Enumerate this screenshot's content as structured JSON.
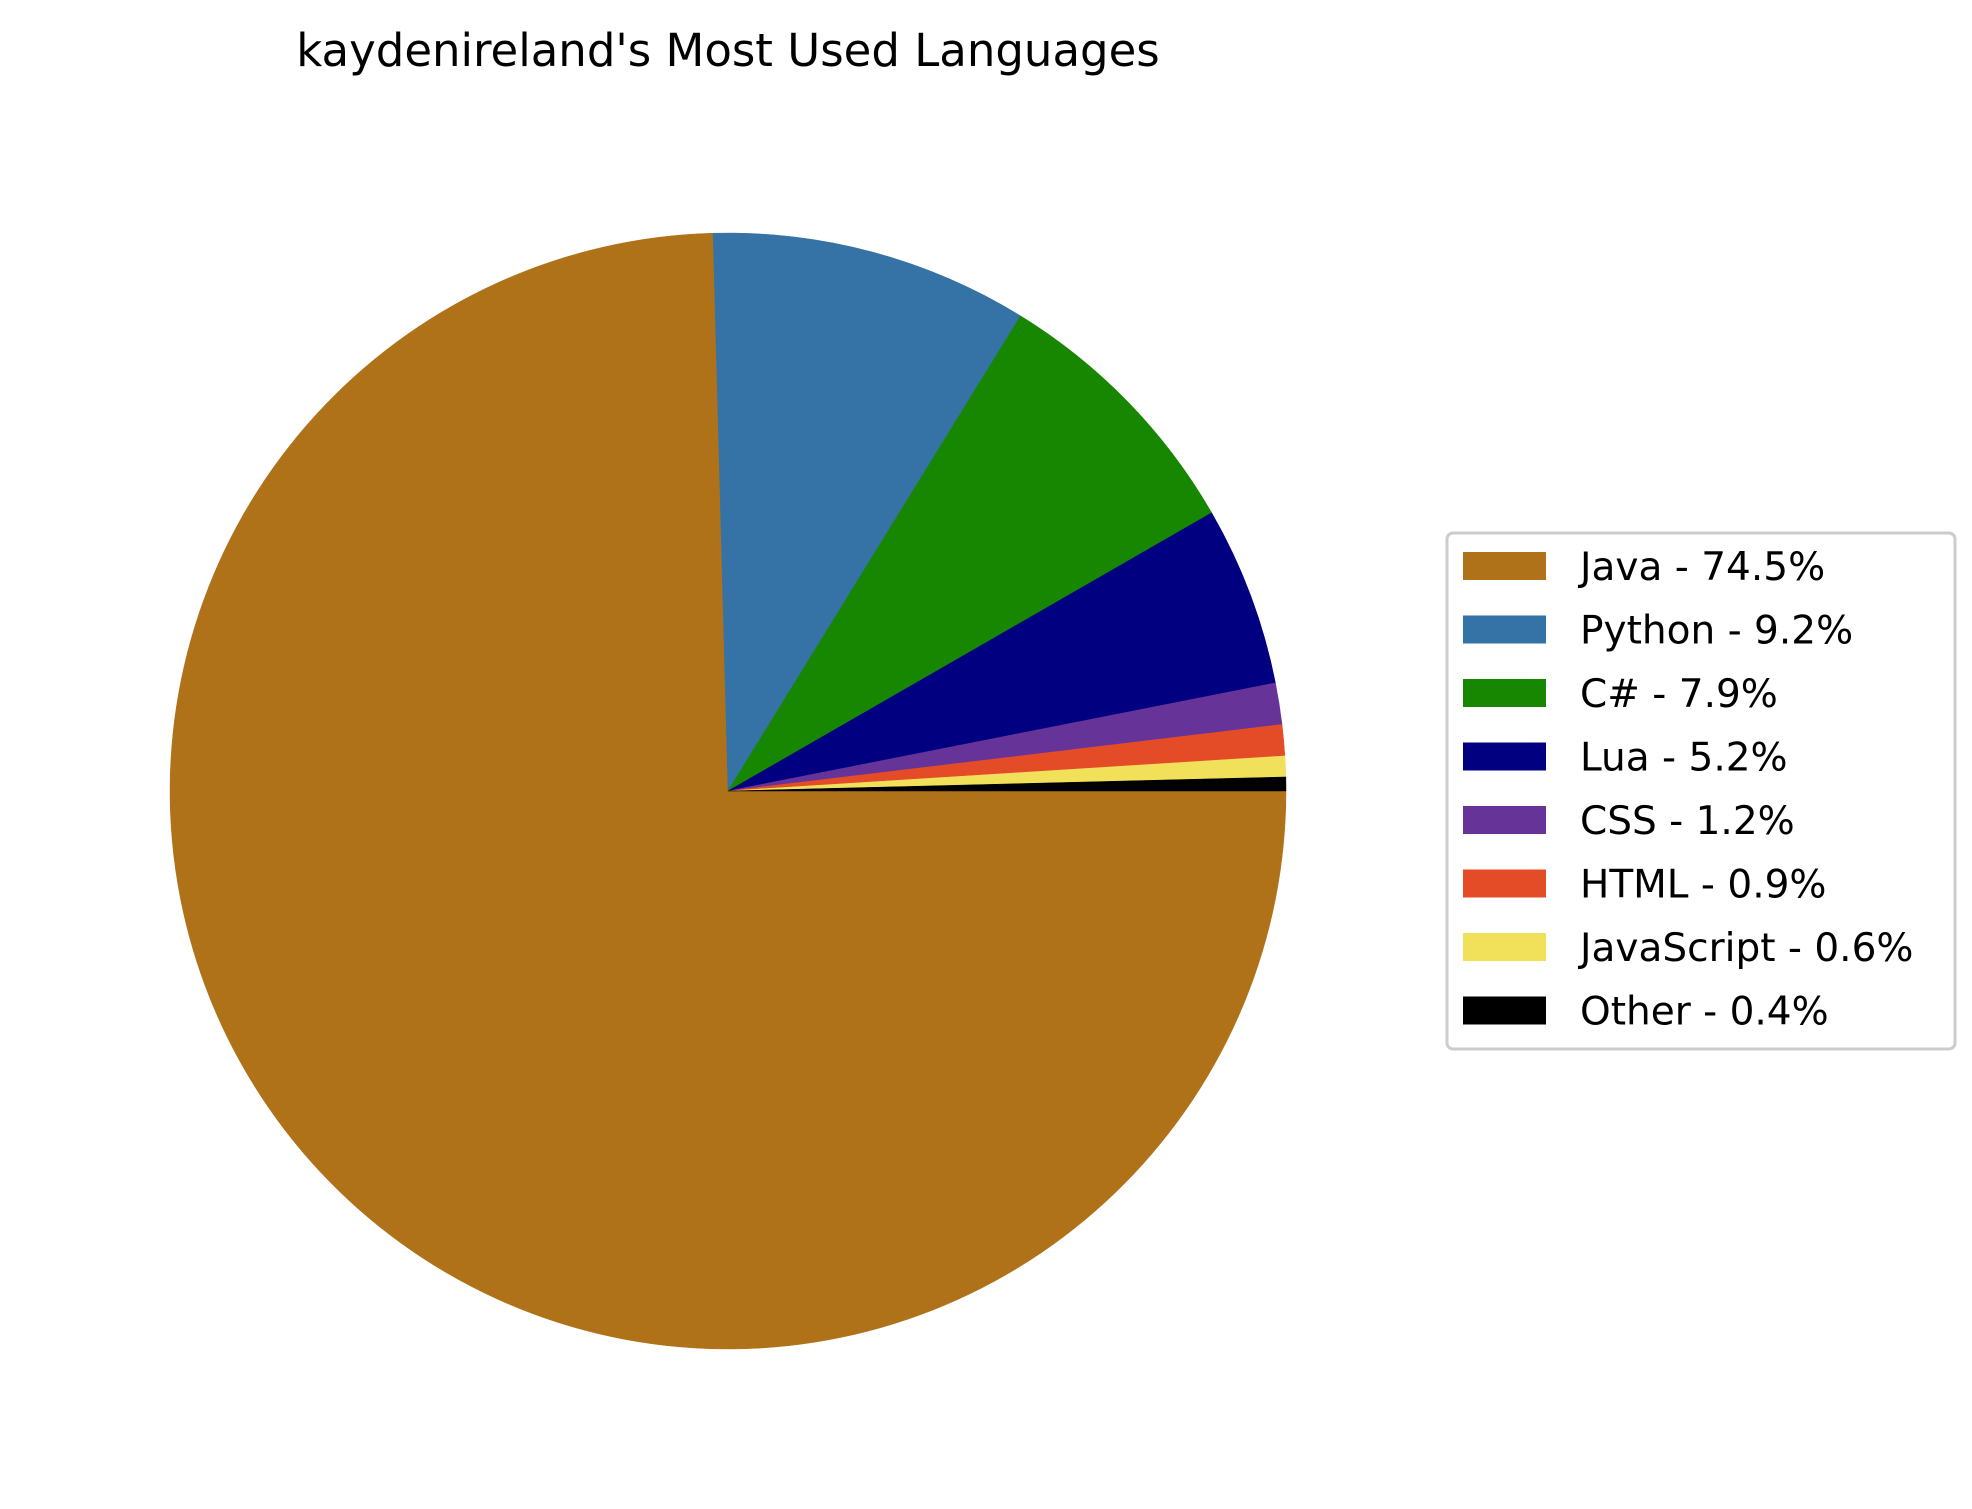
{
  "chart_data": {
    "type": "pie",
    "title": "kaydenireland's Most Used Languages",
    "legend_position": "right",
    "start_angle_deg": 0,
    "direction": "clockwise",
    "slices": [
      {
        "label": "Java",
        "legend_label": "Java - 74.5%",
        "value": 74.5,
        "color": "#b07219"
      },
      {
        "label": "Python",
        "legend_label": "Python - 9.2%",
        "value": 9.2,
        "color": "#3572a5"
      },
      {
        "label": "C#",
        "legend_label": "C# - 7.9%",
        "value": 7.9,
        "color": "#178600"
      },
      {
        "label": "Lua",
        "legend_label": "Lua - 5.2%",
        "value": 5.2,
        "color": "#000080"
      },
      {
        "label": "CSS",
        "legend_label": "CSS - 1.2%",
        "value": 1.2,
        "color": "#663399"
      },
      {
        "label": "HTML",
        "legend_label": "HTML - 0.9%",
        "value": 0.9,
        "color": "#e34c26"
      },
      {
        "label": "JavaScript",
        "legend_label": "JavaScript - 0.6%",
        "value": 0.6,
        "color": "#f1e05a"
      },
      {
        "label": "Other",
        "legend_label": "Other - 0.4%",
        "value": 0.4,
        "color": "#000000"
      }
    ]
  }
}
